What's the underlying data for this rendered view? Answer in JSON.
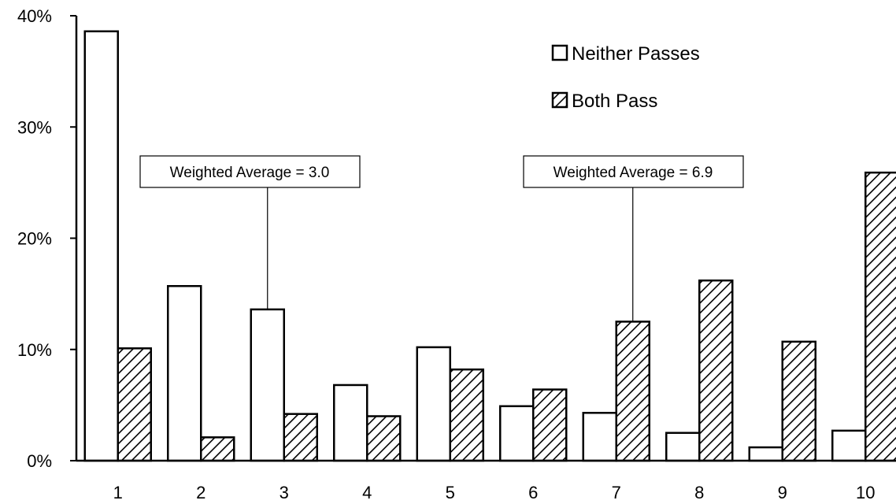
{
  "chart_data": {
    "type": "bar",
    "categories": [
      "1",
      "2",
      "3",
      "4",
      "5",
      "6",
      "7",
      "8",
      "9",
      "10"
    ],
    "series": [
      {
        "name": "Neither Passes",
        "values": [
          38.6,
          15.7,
          13.6,
          6.8,
          10.2,
          4.9,
          4.3,
          2.5,
          1.2,
          2.7
        ]
      },
      {
        "name": "Both Pass",
        "values": [
          10.1,
          2.1,
          4.2,
          4.0,
          8.2,
          6.4,
          12.5,
          16.2,
          10.7,
          25.9
        ]
      }
    ],
    "yticks": [
      "0%",
      "10%",
      "20%",
      "30%",
      "40%"
    ],
    "ylim": [
      0,
      40
    ],
    "legend_position": "top-right",
    "annotations": [
      {
        "text": "Weighted Average = 3.0",
        "x": 3.0
      },
      {
        "text": "Weighted Average = 6.9",
        "x": 6.9
      }
    ],
    "series_colors": [
      "#ffffff",
      "#000000"
    ]
  }
}
